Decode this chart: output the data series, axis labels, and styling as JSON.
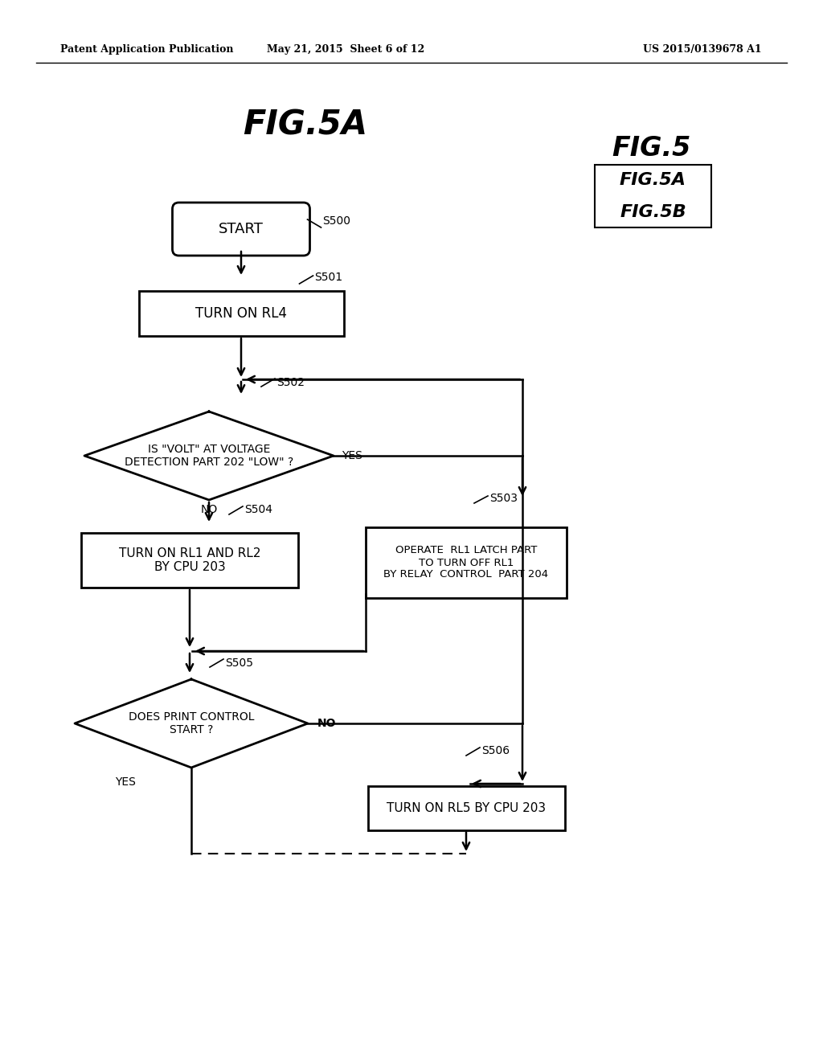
{
  "background_color": "#ffffff",
  "header_left": "Patent Application Publication",
  "header_mid": "May 21, 2015  Sheet 6 of 12",
  "header_right": "US 2015/0139678 A1",
  "fig_title": "FIG.5A",
  "fig_legend_title": "FIG.5",
  "fig_legend_5a": "FIG.5A",
  "fig_legend_5b": "FIG.5B"
}
